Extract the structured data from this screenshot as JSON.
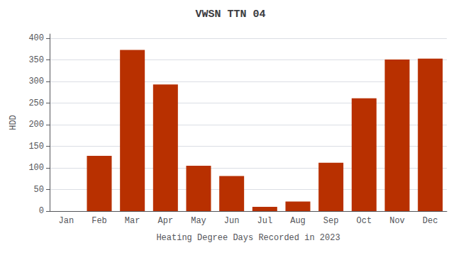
{
  "chart_data": {
    "type": "bar",
    "title": "VWSN TTN 04",
    "xlabel": "Heating Degree Days Recorded in 2023",
    "ylabel": "HDD",
    "categories": [
      "Jan",
      "Feb",
      "Mar",
      "Apr",
      "May",
      "Jun",
      "Jul",
      "Aug",
      "Sep",
      "Oct",
      "Nov",
      "Dec"
    ],
    "values": [
      0,
      128,
      373,
      293,
      105,
      81,
      10,
      22,
      112,
      261,
      351,
      353
    ],
    "color": "#B83000",
    "ylim": [
      0,
      410
    ],
    "yticks": [
      0,
      50,
      100,
      150,
      200,
      250,
      300,
      350,
      400
    ],
    "grid": true
  }
}
